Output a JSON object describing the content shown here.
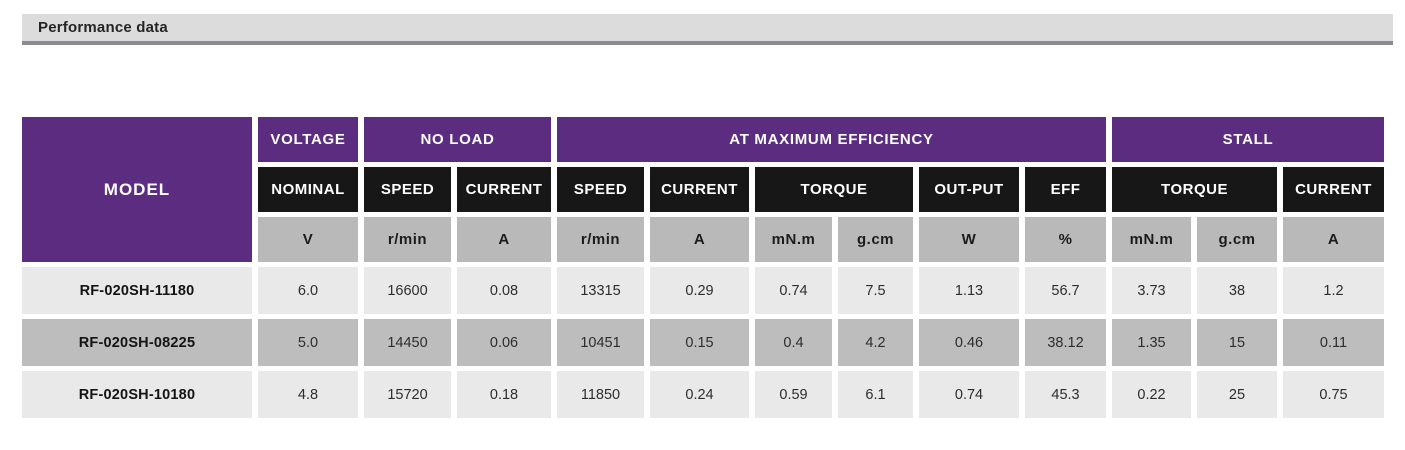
{
  "page_header": {
    "title": "Performance data"
  },
  "colors": {
    "purple": "#5B2C80",
    "black_cell": "#171717",
    "unit_gray": "#B9B9B9",
    "row_light": "#E9E9E9",
    "row_medium": "#BDBDBD",
    "bar_bg": "#DCDCDC",
    "bar_border": "#8A8A92"
  },
  "table": {
    "model_header": "MODEL",
    "groups": [
      {
        "label": "VOLTAGE",
        "span": 1
      },
      {
        "label": "NO LOAD",
        "span": 2
      },
      {
        "label": "AT MAXIMUM EFFICIENCY",
        "span": 6
      },
      {
        "label": "STALL",
        "span": 3
      }
    ],
    "subheaders": [
      {
        "label": "NOMINAL",
        "span": 1
      },
      {
        "label": "SPEED",
        "span": 1
      },
      {
        "label": "CURRENT",
        "span": 1
      },
      {
        "label": "SPEED",
        "span": 1
      },
      {
        "label": "CURRENT",
        "span": 1
      },
      {
        "label": "TORQUE",
        "span": 2
      },
      {
        "label": "OUT-PUT",
        "span": 1
      },
      {
        "label": "EFF",
        "span": 1
      },
      {
        "label": "TORQUE",
        "span": 2
      },
      {
        "label": "CURRENT",
        "span": 1
      }
    ],
    "units": [
      "V",
      "r/min",
      "A",
      "r/min",
      "A",
      "mN.m",
      "g.cm",
      "W",
      "%",
      "mN.m",
      "g.cm",
      "A"
    ],
    "rows": [
      {
        "model": "RF-020SH-11180",
        "shade": "light",
        "values": [
          "6.0",
          "16600",
          "0.08",
          "13315",
          "0.29",
          "0.74",
          "7.5",
          "1.13",
          "56.7",
          "3.73",
          "38",
          "1.2"
        ]
      },
      {
        "model": "RF-020SH-08225",
        "shade": "medium",
        "values": [
          "5.0",
          "14450",
          "0.06",
          "10451",
          "0.15",
          "0.4",
          "4.2",
          "0.46",
          "38.12",
          "1.35",
          "15",
          "0.11"
        ]
      },
      {
        "model": "RF-020SH-10180",
        "shade": "light",
        "values": [
          "4.8",
          "15720",
          "0.18",
          "11850",
          "0.24",
          "0.59",
          "6.1",
          "0.74",
          "45.3",
          "0.22",
          "25",
          "0.75"
        ]
      }
    ]
  },
  "chart_data": {
    "type": "table",
    "title": "Performance data",
    "columns": [
      "MODEL",
      "VOLTAGE NOMINAL (V)",
      "NO LOAD SPEED (r/min)",
      "NO LOAD CURRENT (A)",
      "AT MAX EFF SPEED (r/min)",
      "AT MAX EFF CURRENT (A)",
      "AT MAX EFF TORQUE (mN.m)",
      "AT MAX EFF TORQUE (g.cm)",
      "AT MAX EFF OUT-PUT (W)",
      "AT MAX EFF EFF (%)",
      "STALL TORQUE (mN.m)",
      "STALL TORQUE (g.cm)",
      "STALL CURRENT (A)"
    ],
    "rows": [
      [
        "RF-020SH-11180",
        6.0,
        16600,
        0.08,
        13315,
        0.29,
        0.74,
        7.5,
        1.13,
        56.7,
        3.73,
        38,
        1.2
      ],
      [
        "RF-020SH-08225",
        5.0,
        14450,
        0.06,
        10451,
        0.15,
        0.4,
        4.2,
        0.46,
        38.12,
        1.35,
        15,
        0.11
      ],
      [
        "RF-020SH-10180",
        4.8,
        15720,
        0.18,
        11850,
        0.24,
        0.59,
        6.1,
        0.74,
        45.3,
        0.22,
        25,
        0.75
      ]
    ]
  }
}
